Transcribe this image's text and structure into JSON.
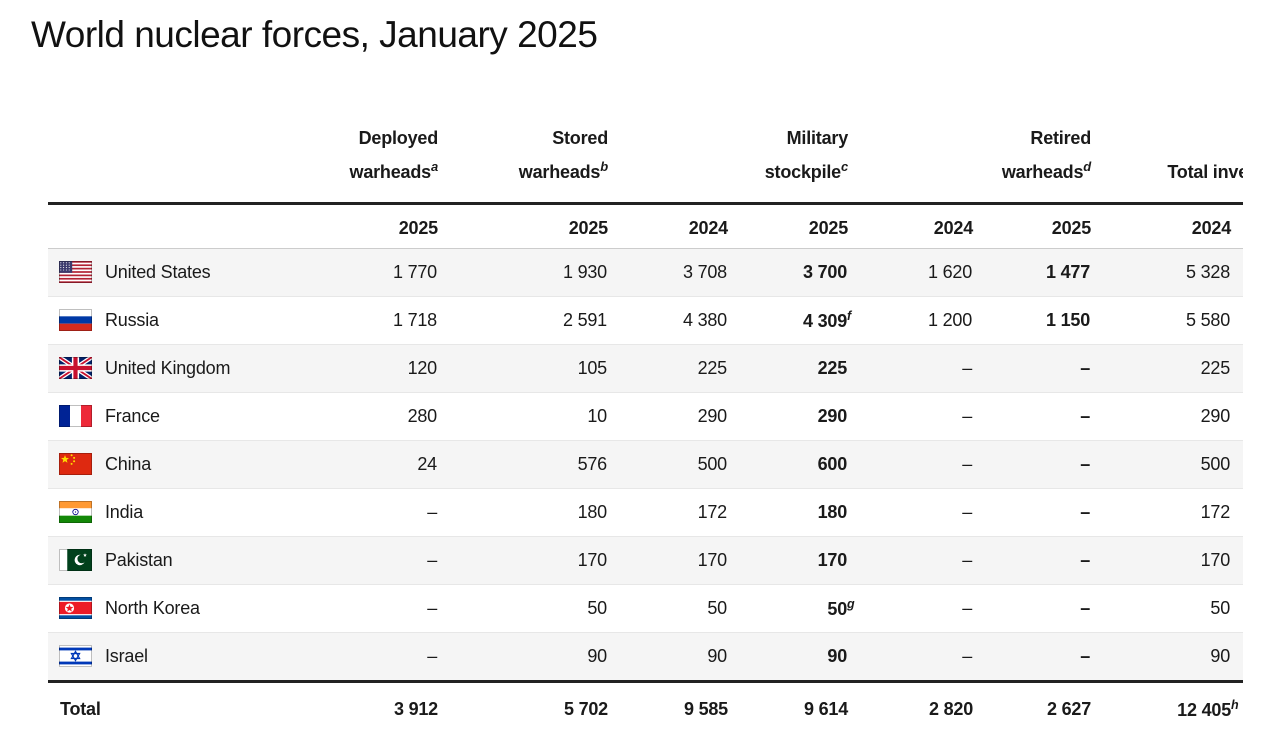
{
  "chart_data": {
    "type": "table",
    "title": "World nuclear forces, January 2025",
    "header": {
      "groups": [
        {
          "line1": "Deployed",
          "line2": "warheads",
          "sup": "a"
        },
        {
          "line1": "Stored",
          "line2": "warheads",
          "sup": "b"
        },
        {
          "line1": "Military",
          "line2": "stockpile",
          "sup": "c"
        },
        {
          "line1": "Retired",
          "line2": "warheads",
          "sup": "d"
        },
        {
          "line1": "",
          "line2": "Total inventory",
          "sup": ""
        }
      ],
      "years": [
        "2025",
        "2025",
        "2024",
        "2025",
        "2024",
        "2025",
        "2024"
      ]
    },
    "rows": [
      {
        "country": "United States",
        "flag": "us",
        "values": [
          "1 770",
          "1 930",
          "3 708",
          "3 700",
          "1 620",
          "1 477",
          "5 328"
        ]
      },
      {
        "country": "Russia",
        "flag": "ru",
        "values": [
          "1 718",
          "2 591",
          "4 380",
          "4 309",
          "1 200",
          "1 150",
          "5 580"
        ],
        "sups": [
          "",
          "",
          "",
          "f",
          "",
          "",
          ""
        ]
      },
      {
        "country": "United Kingdom",
        "flag": "uk",
        "values": [
          "120",
          "105",
          "225",
          "225",
          "–",
          "–",
          "225"
        ]
      },
      {
        "country": "France",
        "flag": "fr",
        "values": [
          "280",
          "10",
          "290",
          "290",
          "–",
          "–",
          "290"
        ]
      },
      {
        "country": "China",
        "flag": "cn",
        "values": [
          "24",
          "576",
          "500",
          "600",
          "–",
          "–",
          "500"
        ]
      },
      {
        "country": "India",
        "flag": "in",
        "values": [
          "–",
          "180",
          "172",
          "180",
          "–",
          "–",
          "172"
        ]
      },
      {
        "country": "Pakistan",
        "flag": "pk",
        "values": [
          "–",
          "170",
          "170",
          "170",
          "–",
          "–",
          "170"
        ]
      },
      {
        "country": "North Korea",
        "flag": "kp",
        "values": [
          "–",
          "50",
          "50",
          "50",
          "–",
          "–",
          "50"
        ],
        "sups": [
          "",
          "",
          "",
          "g",
          "",
          "",
          ""
        ]
      },
      {
        "country": "Israel",
        "flag": "il",
        "values": [
          "–",
          "90",
          "90",
          "90",
          "–",
          "–",
          "90"
        ]
      }
    ],
    "total": {
      "label": "Total",
      "values": [
        "3 912",
        "5 702",
        "9 585",
        "9 614",
        "2 820",
        "2 627",
        "12 405"
      ],
      "sups": [
        "",
        "",
        "",
        "",
        "",
        "",
        "h"
      ]
    }
  },
  "colors": {
    "text": "#1a1a1a",
    "row_stripe": "#f5f5f5",
    "rule_dark": "#222222",
    "rule_light": "#cccccc",
    "row_divider": "#e7e7e7"
  }
}
